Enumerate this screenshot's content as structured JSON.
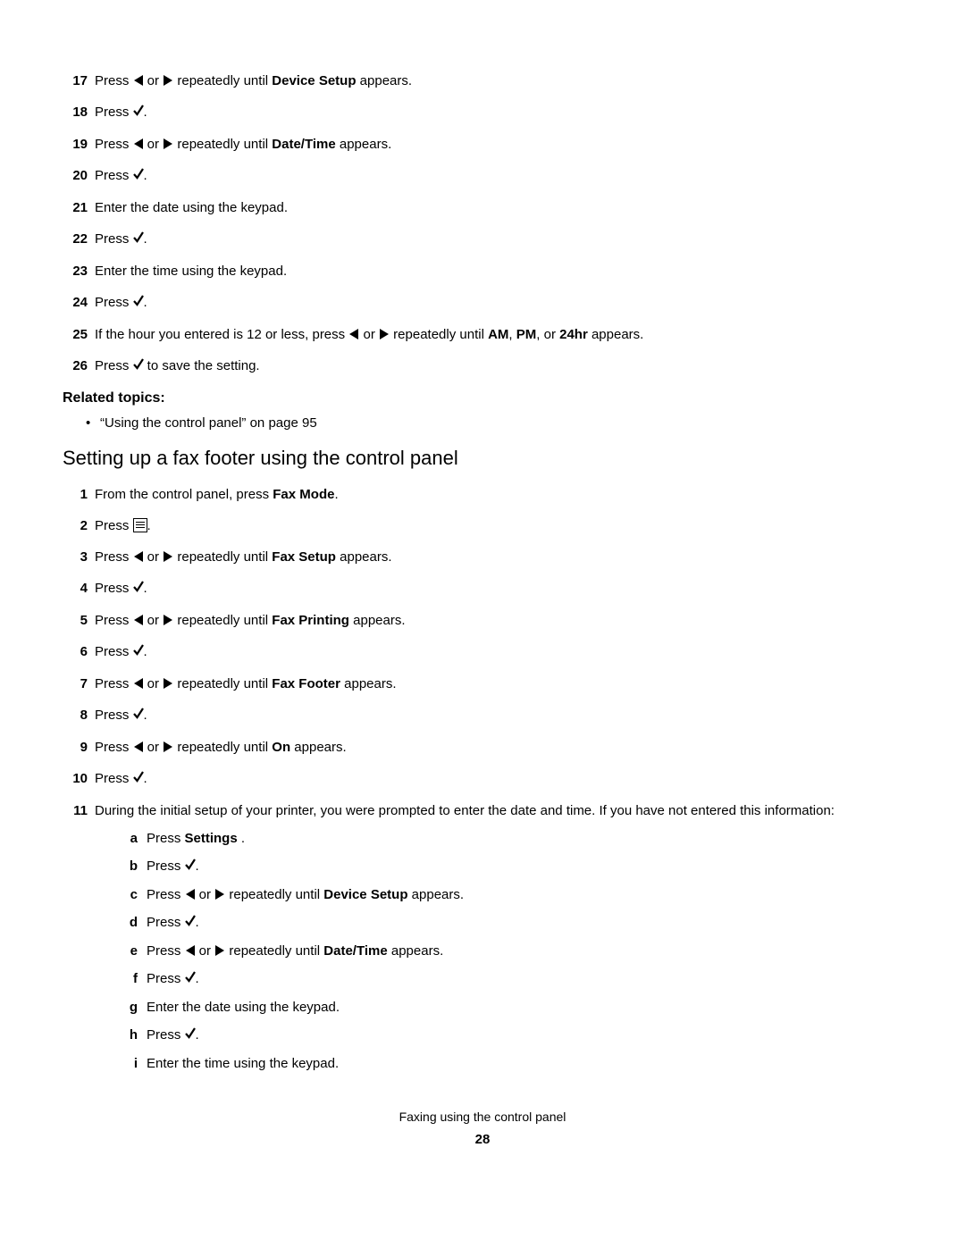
{
  "icons": {
    "left_name": "left-arrow-icon",
    "right_name": "right-arrow-icon",
    "check_name": "check-icon",
    "menu_name": "menu-icon"
  },
  "top_steps": [
    {
      "n": "17",
      "parts": [
        "Press ",
        "@left",
        " or ",
        "@right",
        " repeatedly until ",
        "@b:Device Setup",
        "   appears."
      ]
    },
    {
      "n": "18",
      "parts": [
        "Press ",
        "@check",
        "."
      ]
    },
    {
      "n": "19",
      "parts": [
        "Press ",
        "@left",
        " or ",
        "@right",
        " repeatedly until ",
        "@b:Date/Time",
        "  appears."
      ]
    },
    {
      "n": "20",
      "parts": [
        "Press ",
        "@check",
        "."
      ]
    },
    {
      "n": "21",
      "parts": [
        "Enter the date using the keypad."
      ]
    },
    {
      "n": "22",
      "parts": [
        "Press ",
        "@check",
        "."
      ]
    },
    {
      "n": "23",
      "parts": [
        "Enter the time using the keypad."
      ]
    },
    {
      "n": "24",
      "parts": [
        "Press ",
        "@check",
        "."
      ]
    },
    {
      "n": "25",
      "parts": [
        "If the hour you entered is 12 or less, press ",
        "@left",
        " or ",
        "@right",
        " repeatedly until ",
        "@b:AM",
        ", ",
        "@b:PM",
        ", or ",
        "@b:24hr",
        "  appears."
      ]
    },
    {
      "n": "26",
      "parts": [
        "Press ",
        "@check",
        " to save the setting."
      ]
    }
  ],
  "related": {
    "heading": "Related topics:",
    "bullet": "“Using the control panel” on page 95"
  },
  "section_heading": "Setting up a fax footer   using the control panel",
  "bottom_steps": [
    {
      "n": "1",
      "parts": [
        "From the control panel, press ",
        "@b:Fax Mode",
        "."
      ]
    },
    {
      "n": "2",
      "parts": [
        "Press ",
        "@menu",
        "."
      ]
    },
    {
      "n": "3",
      "parts": [
        "Press ",
        "@left",
        " or ",
        "@right",
        " repeatedly until ",
        "@b:Fax Setup",
        "  appears."
      ]
    },
    {
      "n": "4",
      "parts": [
        "Press ",
        "@check",
        "."
      ]
    },
    {
      "n": "5",
      "parts": [
        "Press ",
        "@left",
        " or ",
        "@right",
        " repeatedly until ",
        "@b:Fax Printing",
        "    appears."
      ]
    },
    {
      "n": "6",
      "parts": [
        "Press ",
        "@check",
        "."
      ]
    },
    {
      "n": "7",
      "parts": [
        "Press ",
        "@left",
        " or ",
        "@right",
        " repeatedly until ",
        "@b:Fax Footer",
        "   appears."
      ]
    },
    {
      "n": "8",
      "parts": [
        "Press ",
        "@check",
        "."
      ]
    },
    {
      "n": "9",
      "parts": [
        "Press ",
        "@left",
        " or ",
        "@right",
        " repeatedly until ",
        "@b:On",
        " appears."
      ]
    },
    {
      "n": "10",
      "parts": [
        "Press ",
        "@check",
        "."
      ]
    },
    {
      "n": "11",
      "parts": [
        "During the initial setup of your printer, you were prompted to enter the date and time. If you have not entered this information:"
      ],
      "sub": [
        {
          "n": "a",
          "parts": [
            "Press ",
            "@b:Settings",
            "   ."
          ]
        },
        {
          "n": "b",
          "parts": [
            "Press ",
            "@check",
            "."
          ]
        },
        {
          "n": "c",
          "parts": [
            "Press ",
            "@left",
            " or ",
            "@right",
            " repeatedly until ",
            "@b:Device Setup",
            "   appears."
          ]
        },
        {
          "n": "d",
          "parts": [
            "Press ",
            "@check",
            "."
          ]
        },
        {
          "n": "e",
          "parts": [
            "Press ",
            "@left",
            " or ",
            "@right",
            " repeatedly until ",
            "@b:Date/Time",
            "  appears."
          ]
        },
        {
          "n": "f",
          "parts": [
            "Press ",
            "@check",
            "."
          ]
        },
        {
          "n": "g",
          "parts": [
            "Enter the date using the keypad."
          ]
        },
        {
          "n": "h",
          "parts": [
            "Press ",
            "@check",
            "."
          ]
        },
        {
          "n": "i",
          "parts": [
            "Enter the time using the keypad."
          ]
        }
      ]
    }
  ],
  "footer_text": "Faxing using the control panel",
  "page_number": "28"
}
